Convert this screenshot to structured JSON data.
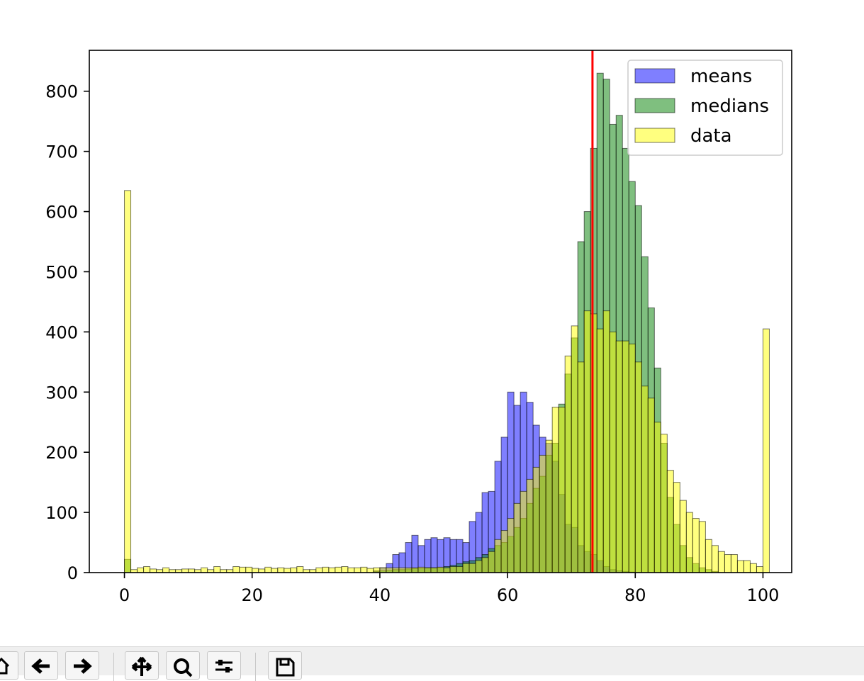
{
  "chart_data": {
    "type": "bar",
    "title": "",
    "xlabel": "",
    "ylabel": "",
    "xlim": [
      -5.5,
      104.5
    ],
    "ylim": [
      0,
      868
    ],
    "xticks": [
      0,
      20,
      40,
      60,
      80,
      100
    ],
    "yticks": [
      0,
      100,
      200,
      300,
      400,
      500,
      600,
      700,
      800
    ],
    "bin_width": 1,
    "bin_starts_from": 0,
    "grid": false,
    "legend_position": "top-right",
    "vertical_line": {
      "x": 73.3,
      "color": "#ff0000"
    },
    "series": [
      {
        "name": "means",
        "color": "#0000ff",
        "alpha": 0.5,
        "values": [
          0,
          0,
          0,
          0,
          0,
          0,
          0,
          0,
          0,
          0,
          0,
          0,
          0,
          0,
          0,
          0,
          0,
          0,
          0,
          0,
          0,
          0,
          0,
          0,
          0,
          0,
          0,
          0,
          0,
          0,
          0,
          0,
          0,
          0,
          0,
          0,
          0,
          0,
          0,
          3,
          8,
          15,
          30,
          33,
          50,
          62,
          45,
          55,
          58,
          55,
          58,
          55,
          55,
          50,
          85,
          100,
          133,
          135,
          185,
          225,
          300,
          278,
          300,
          283,
          245,
          225,
          215,
          185,
          130,
          80,
          75,
          45,
          35,
          30,
          20,
          10,
          5,
          3,
          2,
          1,
          0,
          0,
          0,
          0,
          0,
          0,
          0,
          0,
          0,
          0,
          0,
          0,
          0,
          0,
          0,
          0,
          0,
          0,
          0,
          0
        ]
      },
      {
        "name": "medians",
        "color": "#008000",
        "alpha": 0.5,
        "values": [
          22,
          0,
          0,
          0,
          0,
          0,
          0,
          0,
          0,
          0,
          0,
          0,
          0,
          0,
          0,
          0,
          0,
          0,
          0,
          0,
          0,
          0,
          0,
          0,
          0,
          0,
          0,
          0,
          0,
          0,
          0,
          0,
          0,
          0,
          0,
          0,
          0,
          0,
          0,
          2,
          3,
          4,
          5,
          5,
          6,
          7,
          7,
          8,
          8,
          8,
          10,
          12,
          15,
          18,
          20,
          25,
          30,
          40,
          45,
          50,
          60,
          75,
          90,
          115,
          140,
          160,
          195,
          215,
          280,
          330,
          390,
          550,
          600,
          705,
          830,
          820,
          745,
          760,
          705,
          650,
          610,
          525,
          440,
          340,
          215,
          125,
          80,
          45,
          25,
          15,
          8,
          5,
          2,
          0,
          0,
          0,
          0,
          0,
          0,
          0
        ]
      },
      {
        "name": "data",
        "color": "#ffff00",
        "alpha": 0.5,
        "values": [
          635,
          5,
          8,
          10,
          6,
          5,
          8,
          5,
          5,
          6,
          6,
          5,
          8,
          5,
          10,
          5,
          5,
          10,
          9,
          9,
          7,
          6,
          9,
          7,
          8,
          7,
          8,
          10,
          5,
          5,
          8,
          9,
          8,
          9,
          10,
          8,
          8,
          9,
          7,
          8,
          8,
          8,
          8,
          8,
          8,
          8,
          9,
          8,
          8,
          9,
          8,
          10,
          10,
          15,
          15,
          20,
          25,
          35,
          55,
          70,
          90,
          115,
          135,
          155,
          175,
          195,
          220,
          275,
          275,
          360,
          410,
          350,
          435,
          430,
          405,
          435,
          400,
          385,
          385,
          380,
          350,
          310,
          290,
          250,
          230,
          170,
          150,
          120,
          100,
          90,
          85,
          55,
          45,
          35,
          30,
          30,
          20,
          20,
          15,
          10,
          405
        ]
      }
    ]
  }
}
